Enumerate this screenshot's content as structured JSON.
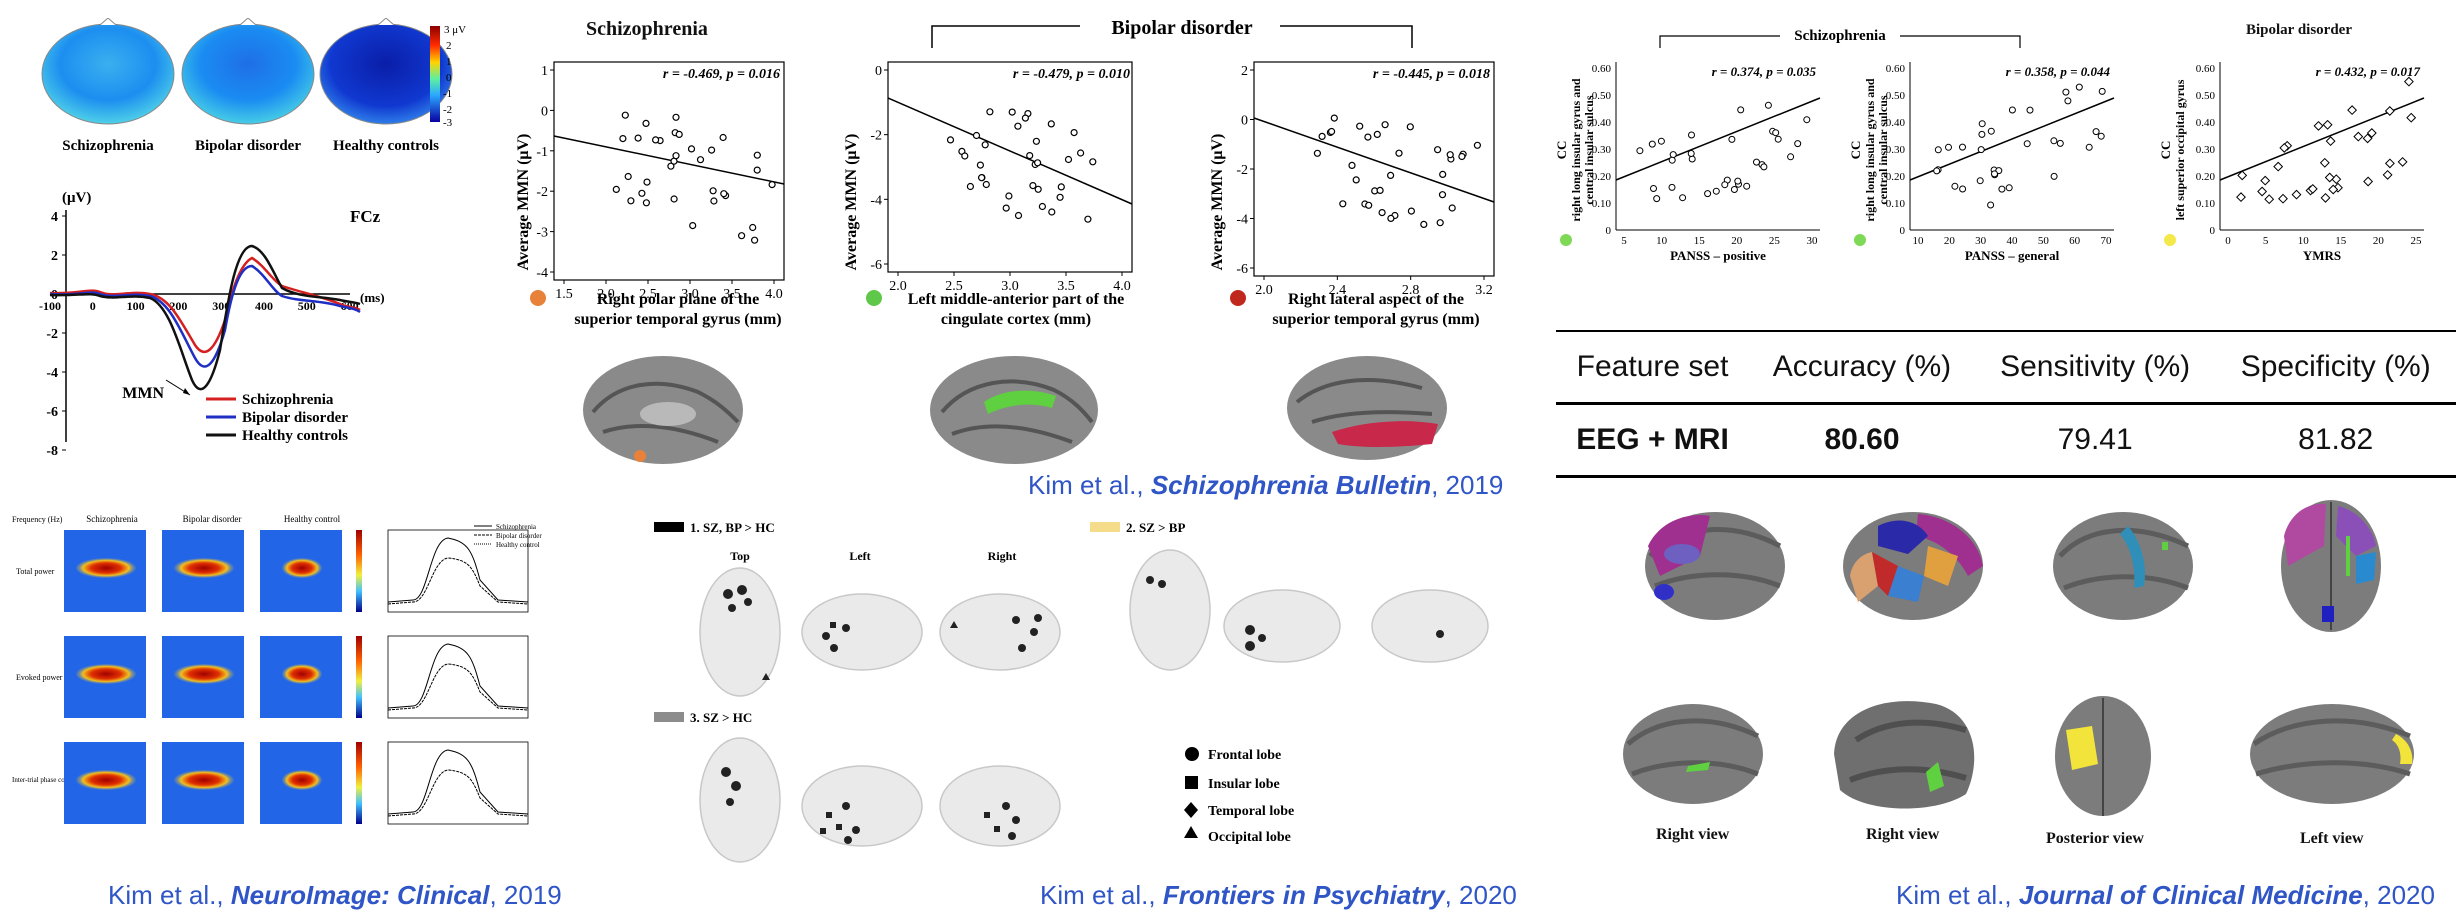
{
  "topo": {
    "labels": [
      "Schizophrenia",
      "Bipolar disorder",
      "Healthy controls"
    ],
    "colorbar_unit": "3 μV",
    "colorbar_ticks": [
      "2",
      "1",
      "0",
      "-1",
      "-2",
      "-3"
    ]
  },
  "erp": {
    "y_unit": "(μV)",
    "channel": "FCz",
    "x_unit": "(ms)",
    "mmn_label": "MMN",
    "x_ticks": [
      "-100",
      "0",
      "100",
      "200",
      "300",
      "400",
      "500",
      "600"
    ],
    "y_ticks": [
      "4",
      "2",
      "0",
      "-2",
      "-4",
      "-6",
      "-8"
    ],
    "legend": [
      "Schizophrenia",
      "Bipolar disorder",
      "Healthy controls"
    ],
    "colors": [
      "#d62020",
      "#1f2fc4",
      "#111111"
    ]
  },
  "scatter_mmn": {
    "title_left": "Schizophrenia",
    "title_bracket": "Bipolar disorder",
    "ylabel": "Average MMN (μV)",
    "panels": [
      {
        "stat": "r = -0.469, p = 0.016",
        "xlabel_line1": "Right polar plane of the",
        "xlabel_line2": "superior temporal gyrus (mm)",
        "dot_color": "#e8813a",
        "x_ticks": [
          "1.5",
          "2.0",
          "2.5",
          "3.0",
          "3.5",
          "4.0"
        ],
        "y_ticks": [
          "1",
          "0",
          "-1",
          "-2",
          "-3",
          "-4"
        ]
      },
      {
        "stat": "r = -0.479, p = 0.010",
        "xlabel_line1": "Left middle-anterior part of the",
        "xlabel_line2": "cingulate cortex (mm)",
        "dot_color": "#5fc84a",
        "x_ticks": [
          "2.0",
          "2.5",
          "3.0",
          "3.5",
          "4.0"
        ],
        "y_ticks": [
          "0",
          "-2",
          "-4",
          "-6"
        ]
      },
      {
        "stat": "r = -0.445, p = 0.018",
        "xlabel_line1": "Right lateral aspect of the",
        "xlabel_line2": "superior temporal gyrus (mm)",
        "dot_color": "#c0281e",
        "x_ticks": [
          "2.0",
          "2.4",
          "2.8",
          "3.2"
        ],
        "y_ticks": [
          "2",
          "0",
          "-2",
          "-4",
          "-6"
        ]
      }
    ],
    "citation_authors": "Kim et al., ",
    "citation_journal": "Schizophrenia Bulletin",
    "citation_year": ", 2019"
  },
  "scatter_cc": {
    "title_sz": "Schizophrenia",
    "title_bp": "Bipolar disorder",
    "panels": [
      {
        "ylabel": "CC",
        "ylabel_sub1": "right long insular gyrus and",
        "ylabel_sub2": "central insular sulcus",
        "stat": "r = 0.374, p = 0.035",
        "xlabel": "PANSS – positive",
        "x_ticks": [
          "5",
          "10",
          "15",
          "20",
          "25",
          "30"
        ],
        "y_ticks": [
          "0.60",
          "0.50",
          "0.40",
          "0.30",
          "0.20",
          "0.10",
          "0"
        ],
        "dot_color": "#7ed957"
      },
      {
        "ylabel": "CC",
        "ylabel_sub1": "right long insular gyrus and",
        "ylabel_sub2": "central insular sulcus",
        "stat": "r = 0.358, p = 0.044",
        "xlabel": "PANSS – general",
        "x_ticks": [
          "10",
          "20",
          "30",
          "40",
          "50",
          "60",
          "70"
        ],
        "y_ticks": [
          "0.60",
          "0.50",
          "0.40",
          "0.30",
          "0.20",
          "0.10",
          "0"
        ],
        "dot_color": "#7ed957"
      },
      {
        "ylabel": "CC",
        "ylabel_sub1": "left superior occipital gyrus",
        "ylabel_sub2": "",
        "stat": "r = 0.432, p = 0.017",
        "xlabel": "YMRS",
        "x_ticks": [
          "0",
          "5",
          "10",
          "15",
          "20",
          "25"
        ],
        "y_ticks": [
          "0.60",
          "0.50",
          "0.40",
          "0.30",
          "0.20",
          "0.10",
          "0"
        ],
        "dot_color": "#f4e84a"
      }
    ]
  },
  "table": {
    "headers": [
      "Feature set",
      "Accuracy (%)",
      "Sensitivity (%)",
      "Specificity (%)"
    ],
    "rows": [
      [
        "EEG + MRI",
        "80.60",
        "79.41",
        "81.82"
      ]
    ]
  },
  "cortex_views": [
    "Right view",
    "Right view",
    "Posterior view",
    "Left view"
  ],
  "ersp": {
    "col_titles": [
      "Schizophrenia",
      "Bipolar disorder",
      "Healthy control"
    ],
    "row_titles": [
      "Total power",
      "Evoked power",
      "Inter-trial phase coherence"
    ],
    "freq_label": "Frequency (Hz)",
    "legend": [
      "Schizophrenia",
      "Bipolar disorder",
      "Healthy control"
    ],
    "citation_authors": "Kim et al., ",
    "citation_journal": "NeuroImage: Clinical",
    "citation_year": ", 2019"
  },
  "glass": {
    "group1": "1. SZ, BP > HC",
    "group2": "2. SZ > BP",
    "group3": "3. SZ > HC",
    "views": [
      "Top",
      "Left",
      "Right"
    ],
    "lobes": [
      "Frontal lobe",
      "Insular lobe",
      "Temporal lobe",
      "Occipital lobe"
    ],
    "citation_authors": "Kim et al., ",
    "citation_journal": "Frontiers in Psychiatry",
    "citation_year": ", 2020"
  },
  "jcm_citation": {
    "authors": "Kim et al., ",
    "journal": "Journal of Clinical Medicine",
    "year": ", 2020"
  }
}
